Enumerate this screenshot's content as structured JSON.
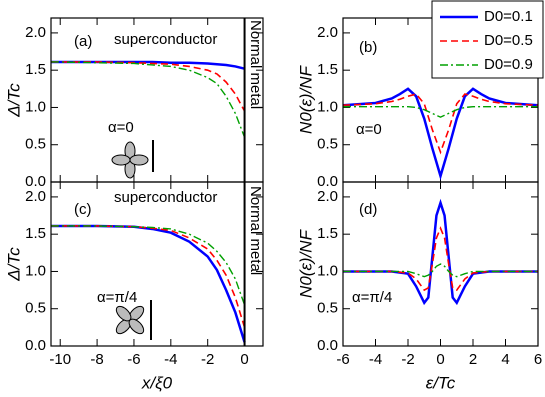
{
  "chart_data": [
    {
      "type": "line",
      "ylabel": "Δ/Tc",
      "annotations": [
        "(a)",
        "superconductor",
        "Normal metal",
        "α=0"
      ],
      "xlim": [
        -10.5,
        1
      ],
      "ylim": [
        0,
        2.2
      ],
      "xticks": [
        -10,
        -8,
        -6,
        -4,
        -2,
        0
      ],
      "yticks": [
        {
          "value": 0,
          "label": "0.0"
        },
        {
          "value": 0.5,
          "label": "0.5"
        },
        {
          "value": 1,
          "label": "1.0"
        },
        {
          "value": 1.5,
          "label": "1.5"
        },
        {
          "value": 2,
          "label": "2.0"
        }
      ],
      "x": [
        -10.5,
        -10,
        -8,
        -6,
        -5,
        -4,
        -3,
        -2,
        -1.5,
        -1,
        -0.5,
        0
      ],
      "series": [
        {
          "color": "#0000ff",
          "values": [
            1.61,
            1.61,
            1.61,
            1.61,
            1.61,
            1.6,
            1.6,
            1.59,
            1.58,
            1.57,
            1.55,
            1.52
          ]
        },
        {
          "color": "#ff0000",
          "values": [
            1.61,
            1.61,
            1.61,
            1.6,
            1.59,
            1.58,
            1.55,
            1.5,
            1.45,
            1.34,
            1.18,
            0.95
          ]
        },
        {
          "color": "#00a000",
          "values": [
            1.61,
            1.61,
            1.6,
            1.59,
            1.57,
            1.55,
            1.5,
            1.4,
            1.32,
            1.15,
            0.92,
            0.6
          ]
        }
      ]
    },
    {
      "type": "line",
      "ylabel": "N0(ε)/NF",
      "annotations": [
        "(b)",
        "α=0"
      ],
      "xlim": [
        -6,
        6
      ],
      "ylim": [
        0,
        2.2
      ],
      "xticks": [
        -6,
        -4,
        -2,
        0,
        2,
        4,
        6
      ],
      "yticks": [
        {
          "value": 0,
          "label": "0.0"
        },
        {
          "value": 0.5,
          "label": "0.5"
        },
        {
          "value": 1,
          "label": "1.0"
        },
        {
          "value": 1.5,
          "label": "1.5"
        },
        {
          "value": 2,
          "label": "2.0"
        }
      ],
      "x": [
        -6,
        -4,
        -3,
        -2.5,
        -2,
        -1.5,
        -1,
        -0.5,
        0,
        0.5,
        1,
        1.5,
        2,
        2.5,
        3,
        4,
        6
      ],
      "series": [
        {
          "name": "D0=0.1",
          "color": "#0000ff",
          "values": [
            1.03,
            1.06,
            1.12,
            1.18,
            1.25,
            1.15,
            0.85,
            0.45,
            0.08,
            0.45,
            0.85,
            1.15,
            1.25,
            1.18,
            1.12,
            1.06,
            1.03
          ]
        },
        {
          "name": "D0=0.5",
          "color": "#ff0000",
          "values": [
            1.03,
            1.05,
            1.08,
            1.11,
            1.15,
            1.18,
            1.05,
            0.7,
            0.4,
            0.7,
            1.05,
            1.18,
            1.15,
            1.11,
            1.08,
            1.05,
            1.03
          ]
        },
        {
          "name": "D0=0.9",
          "color": "#00a000",
          "values": [
            1.01,
            1.01,
            1.01,
            1.01,
            1.01,
            1.0,
            0.97,
            0.92,
            0.87,
            0.92,
            0.97,
            1.0,
            1.01,
            1.01,
            1.01,
            1.01,
            1.01
          ]
        }
      ]
    },
    {
      "type": "line",
      "ylabel": "Δ/Tc",
      "xlabel": "x/ξ0",
      "annotations": [
        "(c)",
        "superconductor",
        "Normal metal",
        "α=π/4"
      ],
      "xlim": [
        -10.5,
        1
      ],
      "ylim": [
        0,
        2.2
      ],
      "xticks": [
        -10,
        -8,
        -6,
        -4,
        -2,
        0
      ],
      "yticks": [
        {
          "value": 0,
          "label": "0.0"
        },
        {
          "value": 0.5,
          "label": "0.5"
        },
        {
          "value": 1,
          "label": "1.0"
        },
        {
          "value": 1.5,
          "label": "1.5"
        },
        {
          "value": 2,
          "label": "2.0"
        }
      ],
      "x": [
        -10.5,
        -10,
        -8,
        -6,
        -5,
        -4,
        -3,
        -2,
        -1.5,
        -1,
        -0.5,
        0
      ],
      "series": [
        {
          "color": "#0000ff",
          "values": [
            1.61,
            1.61,
            1.61,
            1.6,
            1.57,
            1.52,
            1.4,
            1.2,
            1.02,
            0.75,
            0.45,
            0.05
          ]
        },
        {
          "color": "#ff0000",
          "values": [
            1.61,
            1.61,
            1.61,
            1.6,
            1.58,
            1.55,
            1.45,
            1.3,
            1.15,
            0.95,
            0.65,
            0.25
          ]
        },
        {
          "color": "#00a000",
          "values": [
            1.61,
            1.61,
            1.61,
            1.6,
            1.59,
            1.57,
            1.5,
            1.38,
            1.27,
            1.12,
            0.9,
            0.55
          ]
        }
      ]
    },
    {
      "type": "line",
      "ylabel": "N0(ε)/NF",
      "xlabel": "ε/Tc",
      "annotations": [
        "(d)",
        "α=π/4"
      ],
      "xlim": [
        -6,
        6
      ],
      "ylim": [
        0,
        2.2
      ],
      "xticks": [
        -6,
        -4,
        -2,
        0,
        2,
        4,
        6
      ],
      "yticks": [
        {
          "value": 0,
          "label": "0.0"
        },
        {
          "value": 0.5,
          "label": "0.5"
        },
        {
          "value": 1,
          "label": "1.0"
        },
        {
          "value": 1.5,
          "label": "1.5"
        },
        {
          "value": 2,
          "label": "2.0"
        }
      ],
      "x": [
        -6,
        -3,
        -2,
        -1.5,
        -1,
        -0.75,
        -0.5,
        -0.25,
        0,
        0.25,
        0.5,
        0.75,
        1,
        1.5,
        2,
        3,
        6
      ],
      "series": [
        {
          "color": "#0000ff",
          "values": [
            1.0,
            1.0,
            0.97,
            0.8,
            0.58,
            0.65,
            1.2,
            1.75,
            1.92,
            1.75,
            1.2,
            0.65,
            0.58,
            0.8,
            0.97,
            1.0,
            1.0
          ]
        },
        {
          "color": "#ff0000",
          "values": [
            1.0,
            1.0,
            0.98,
            0.9,
            0.75,
            0.78,
            1.1,
            1.45,
            1.58,
            1.45,
            1.1,
            0.78,
            0.75,
            0.9,
            0.98,
            1.0,
            1.0
          ]
        },
        {
          "color": "#00a000",
          "values": [
            1.0,
            1.0,
            1.0,
            0.97,
            0.93,
            0.95,
            1.0,
            1.07,
            1.1,
            1.07,
            1.0,
            0.95,
            0.93,
            0.97,
            1.0,
            1.0,
            1.0
          ]
        }
      ]
    }
  ]
}
